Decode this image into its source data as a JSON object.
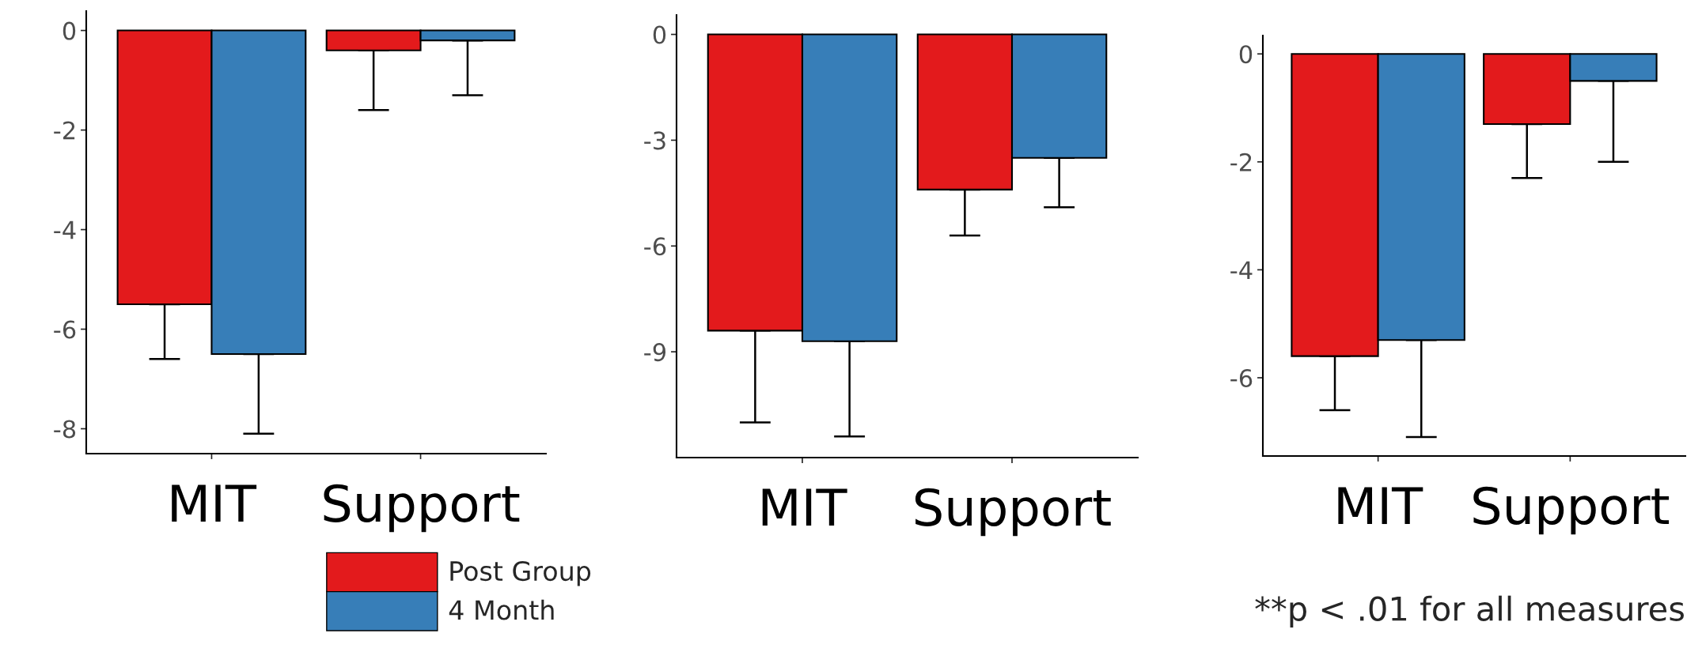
{
  "chart_data": [
    {
      "type": "bar",
      "categories": [
        "MIT",
        "Support"
      ],
      "ylim": [
        -8.5,
        0.39
      ],
      "yticks": [
        0,
        -2,
        -4,
        -6,
        -8
      ],
      "legend": "bottom",
      "series": [
        {
          "name": "Post Group",
          "color": "#e31a1c",
          "values": [
            -5.5,
            -0.4
          ],
          "errors": [
            [
              -6.6,
              -5.5
            ],
            [
              -1.6,
              -0.4
            ]
          ]
        },
        {
          "name": "4 Month",
          "color": "#377eb8",
          "values": [
            -6.5,
            -0.2
          ],
          "errors": [
            [
              -8.1,
              -6.5
            ],
            [
              -1.3,
              -0.2
            ]
          ]
        }
      ]
    },
    {
      "type": "bar",
      "categories": [
        "MIT",
        "Support"
      ],
      "ylim": [
        -12.0,
        0.55
      ],
      "yticks": [
        0,
        -3,
        -6,
        -9
      ],
      "series": [
        {
          "color": "#e31a1c",
          "values": [
            -8.4,
            -4.4
          ],
          "errors": [
            [
              -11.0,
              -8.4
            ],
            [
              -5.7,
              -4.4
            ]
          ]
        },
        {
          "color": "#377eb8",
          "values": [
            -8.7,
            -3.5
          ],
          "errors": [
            [
              -11.4,
              -8.7
            ],
            [
              -4.9,
              -3.5
            ]
          ]
        }
      ]
    },
    {
      "type": "bar",
      "categories": [
        "MIT",
        "Support"
      ],
      "ylim": [
        -7.45,
        0.34
      ],
      "yticks": [
        0,
        -2,
        -4,
        -6
      ],
      "annotations": [
        "**p < .01 for all measures"
      ],
      "series": [
        {
          "color": "#e31a1c",
          "values": [
            -5.6,
            -1.3
          ],
          "errors": [
            [
              -6.6,
              -5.6
            ],
            [
              -2.3,
              -1.3
            ]
          ]
        },
        {
          "color": "#377eb8",
          "values": [
            -5.3,
            -0.5
          ],
          "errors": [
            [
              -7.1,
              -5.3
            ],
            [
              -2.0,
              -0.5
            ]
          ]
        }
      ]
    }
  ]
}
